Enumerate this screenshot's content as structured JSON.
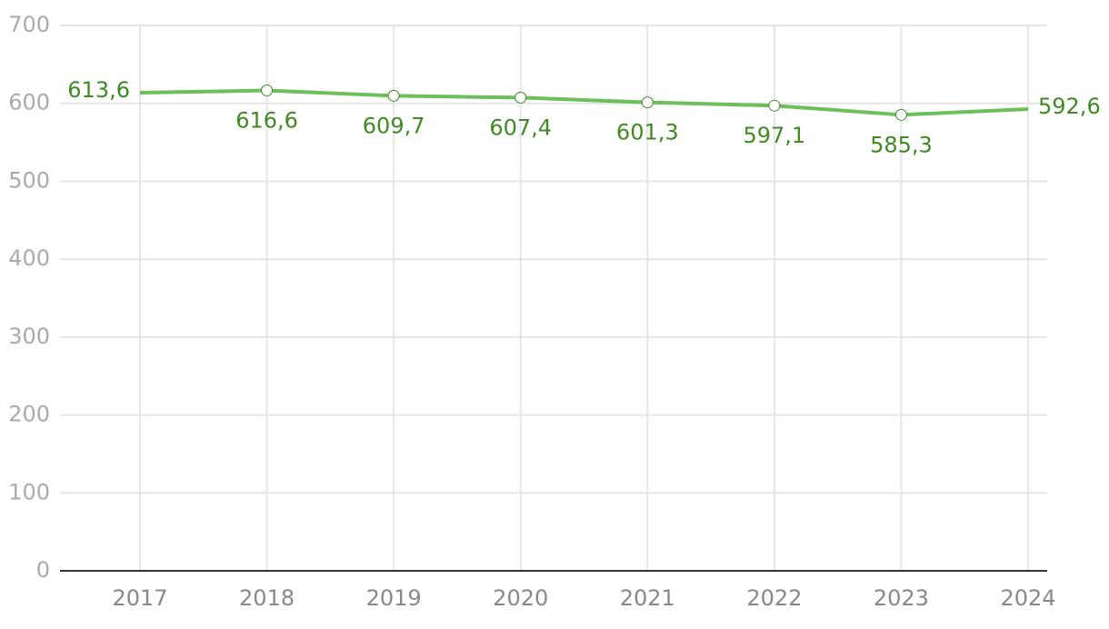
{
  "chart_data": {
    "type": "line",
    "categories": [
      "2017",
      "2018",
      "2019",
      "2020",
      "2021",
      "2022",
      "2023",
      "2024"
    ],
    "values": [
      613.6,
      616.6,
      609.7,
      607.4,
      601.3,
      597.1,
      585.3,
      592.6
    ],
    "value_labels": [
      "613,6",
      "616,6",
      "609,7",
      "607,4",
      "601,3",
      "597,1",
      "585,3",
      "592,6"
    ],
    "color": "#6dbf5b",
    "label_color": "#3f8a22",
    "ylim": [
      0,
      700
    ],
    "yticks": [
      0,
      100,
      200,
      300,
      400,
      500,
      600,
      700
    ],
    "grid": true
  }
}
